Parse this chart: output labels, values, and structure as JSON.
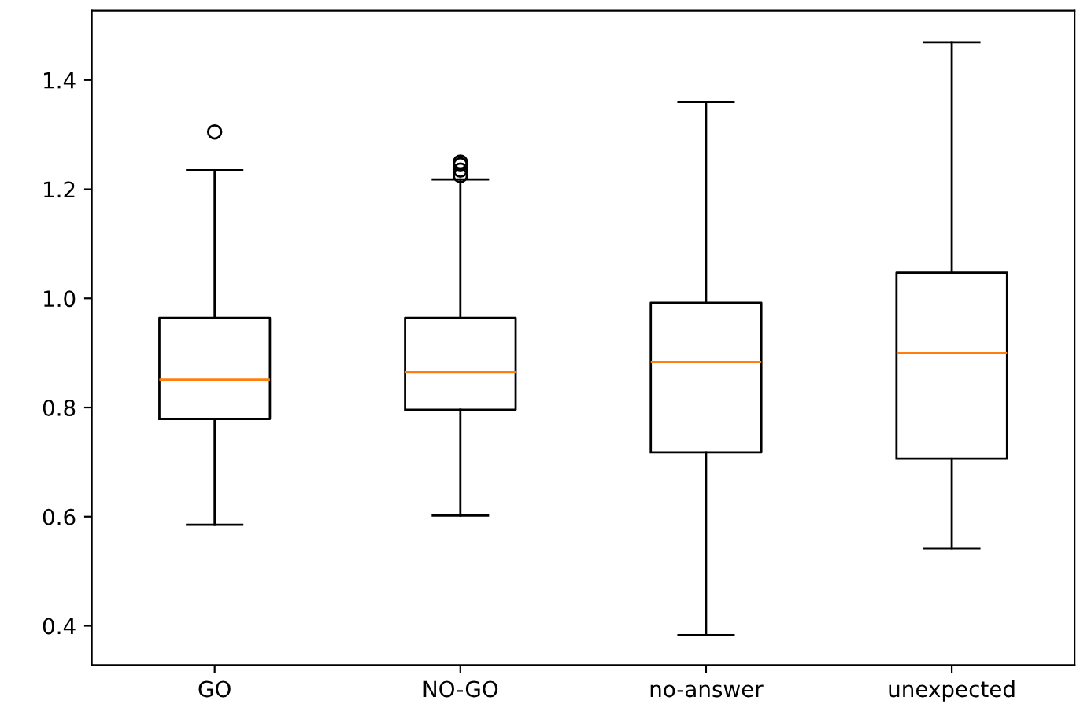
{
  "chart_data": {
    "type": "box",
    "categories": [
      "GO",
      "NO-GO",
      "no-answer",
      "unexpected"
    ],
    "boxes": [
      {
        "low": 0.585,
        "q1": 0.779,
        "median": 0.851,
        "q3": 0.964,
        "high": 1.235,
        "outliers": [
          1.305
        ]
      },
      {
        "low": 0.602,
        "q1": 0.796,
        "median": 0.865,
        "q3": 0.964,
        "high": 1.218,
        "outliers": [
          1.225,
          1.235,
          1.245,
          1.25
        ]
      },
      {
        "low": 0.383,
        "q1": 0.718,
        "median": 0.883,
        "q3": 0.992,
        "high": 1.36
      },
      {
        "low": 0.542,
        "q1": 0.706,
        "median": 0.9,
        "q3": 1.047,
        "high": 1.469
      }
    ],
    "ylim": [
      0.328,
      1.527
    ],
    "yticks": [
      0.4,
      0.6,
      0.8,
      {
        "value": 1,
        "label": "1.0"
      },
      1.2,
      1.4
    ],
    "grid": false
  }
}
